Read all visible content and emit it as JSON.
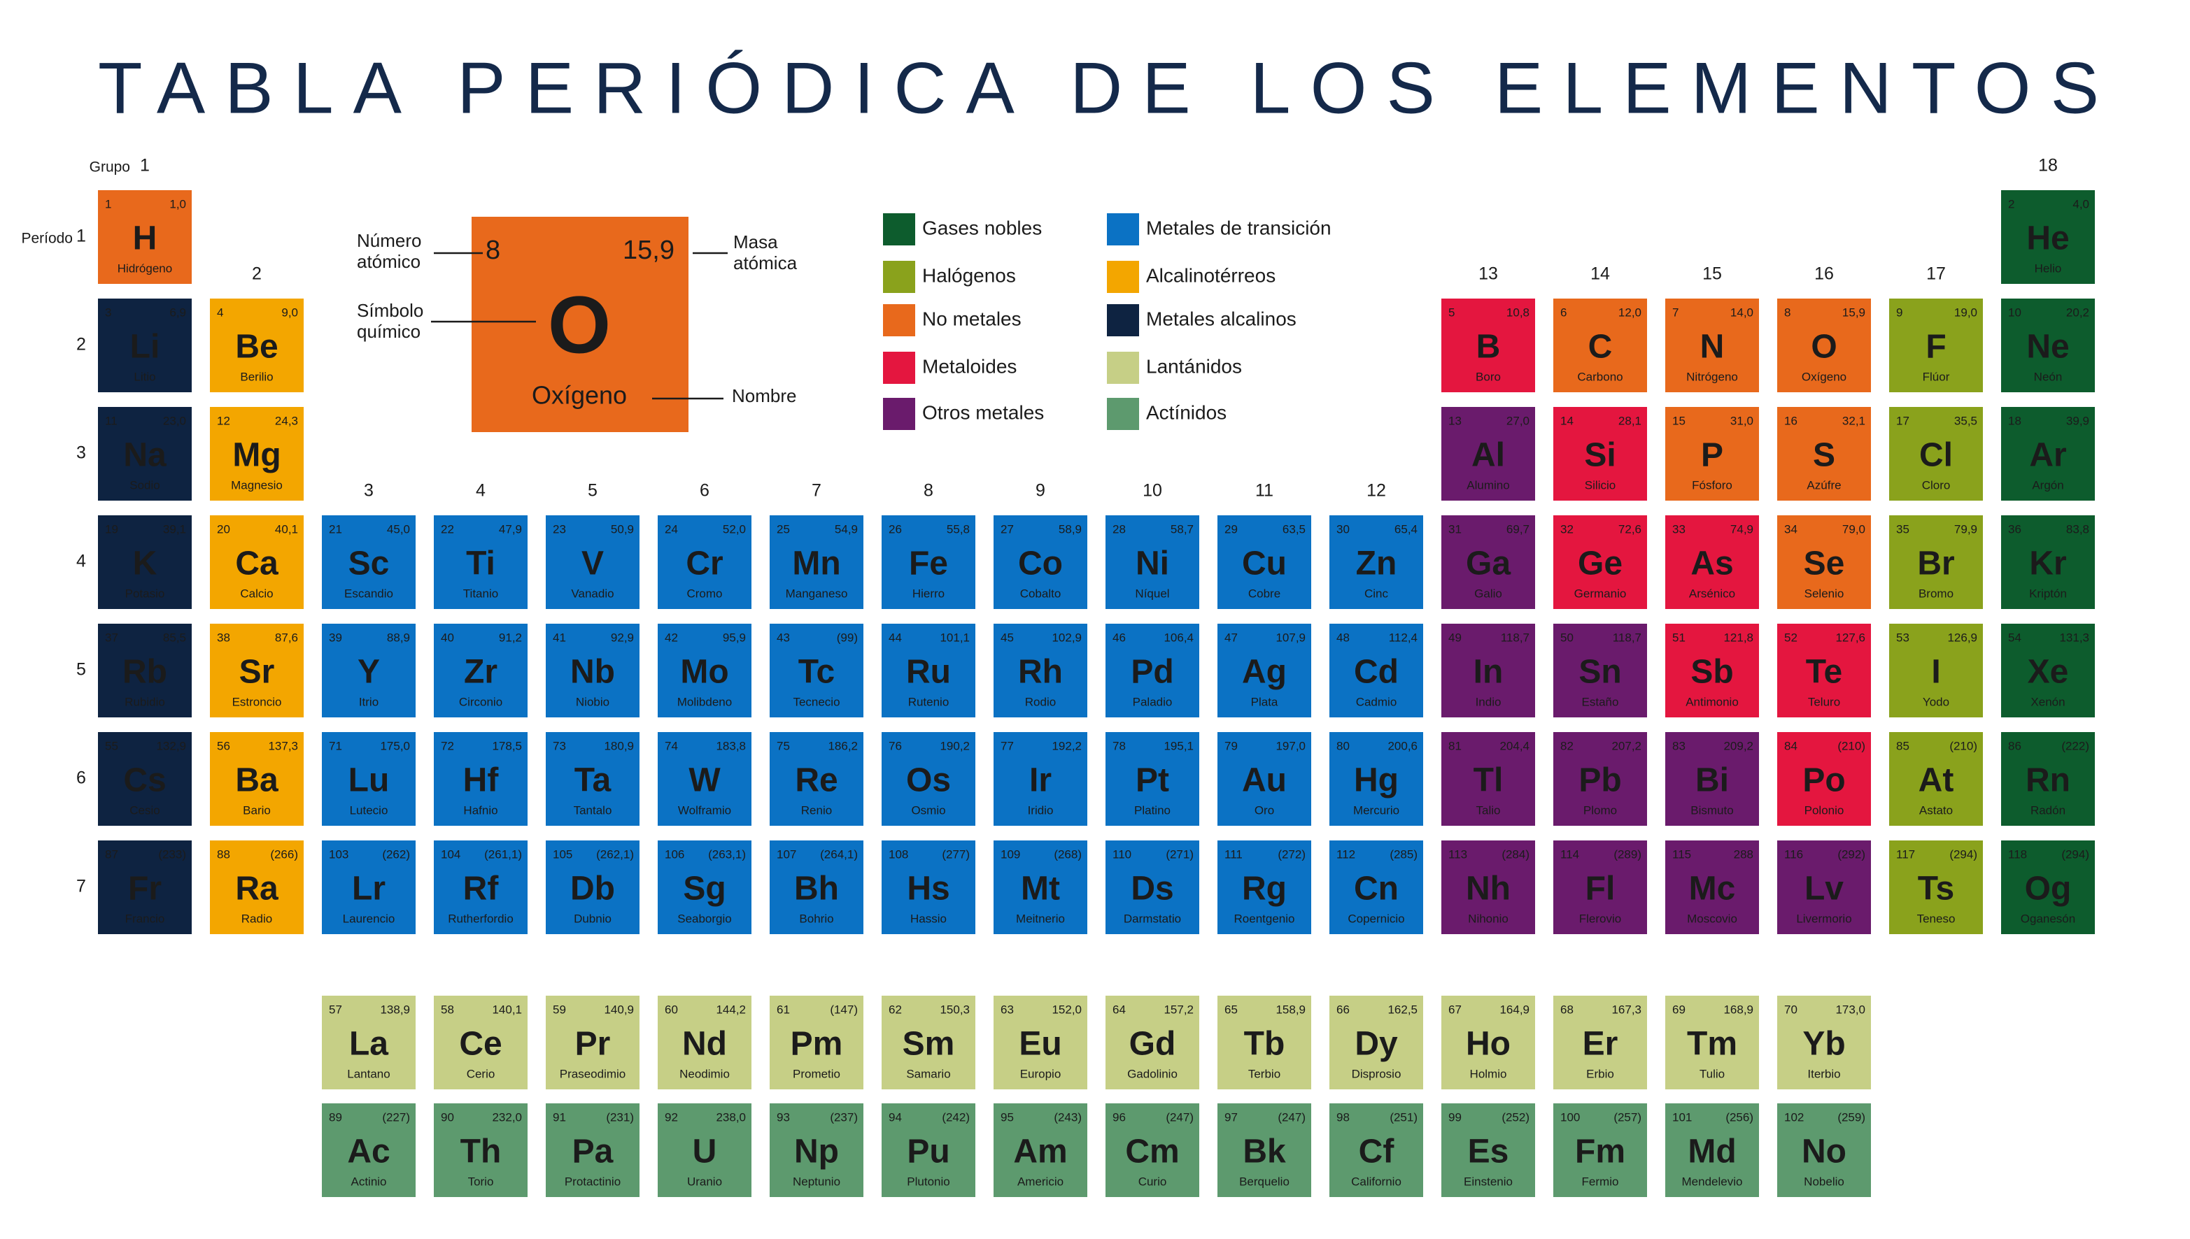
{
  "title": "TABLA PERIÓDICA DE LOS ELEMENTOS",
  "group_label": "Grupo",
  "period_label": "Período",
  "groups": [
    1,
    2,
    3,
    4,
    5,
    6,
    7,
    8,
    9,
    10,
    11,
    12,
    13,
    14,
    15,
    16,
    17,
    18
  ],
  "periods": [
    1,
    2,
    3,
    4,
    5,
    6,
    7
  ],
  "legend": [
    {
      "name": "Gases nobles",
      "color": "#0d5c2d",
      "text_color": "#ffffff"
    },
    {
      "name": "Halógenos",
      "color": "#8aa21c",
      "text_color": "#111111"
    },
    {
      "name": "No metales",
      "color": "#e8691c",
      "text_color": "#111111"
    },
    {
      "name": "Metaloides",
      "color": "#e4163f",
      "text_color": "#ffffff"
    },
    {
      "name": "Otros metales",
      "color": "#6a1b6c",
      "text_color": "#ffffff"
    },
    {
      "name": "Metales de transición",
      "color": "#0b72c4",
      "text_color": "#ffffff"
    },
    {
      "name": "Alcalinotérreos",
      "color": "#f3a600",
      "text_color": "#111111"
    },
    {
      "name": "Metales alcalinos",
      "color": "#0e2341",
      "text_color": "#ffffff"
    },
    {
      "name": "Lantánidos",
      "color": "#c6cf86",
      "text_color": "#111111"
    },
    {
      "name": "Actínidos",
      "color": "#5d9a6e",
      "text_color": "#111111"
    }
  ],
  "key_labels": {
    "atomic_number": [
      "Número",
      "atómico"
    ],
    "atomic_mass": [
      "Masa",
      "atómica"
    ],
    "symbol": [
      "Símbolo",
      "químico"
    ],
    "name": [
      "Nombre"
    ]
  },
  "elements": [
    {
      "number": 1,
      "mass": "1,0",
      "symbol": "H",
      "name": "Hidrógeno",
      "category": "No metales"
    },
    {
      "number": 2,
      "mass": "4,0",
      "symbol": "He",
      "name": "Helio",
      "category": "Gases nobles"
    },
    {
      "number": 3,
      "mass": "6,9",
      "symbol": "Li",
      "name": "Litio",
      "category": "Metales alcalinos"
    },
    {
      "number": 4,
      "mass": "9,0",
      "symbol": "Be",
      "name": "Berilio",
      "category": "Alcalinotérreos"
    },
    {
      "number": 5,
      "mass": "10,8",
      "symbol": "B",
      "name": "Boro",
      "category": "Metaloides"
    },
    {
      "number": 6,
      "mass": "12,0",
      "symbol": "C",
      "name": "Carbono",
      "category": "No metales"
    },
    {
      "number": 7,
      "mass": "14,0",
      "symbol": "N",
      "name": "Nitrógeno",
      "category": "No metales"
    },
    {
      "number": 8,
      "mass": "15,9",
      "symbol": "O",
      "name": "Oxígeno",
      "category": "No metales"
    },
    {
      "number": 9,
      "mass": "19,0",
      "symbol": "F",
      "name": "Flúor",
      "category": "Halógenos"
    },
    {
      "number": 10,
      "mass": "20,2",
      "symbol": "Ne",
      "name": "Neón",
      "category": "Gases nobles"
    },
    {
      "number": 11,
      "mass": "23,0",
      "symbol": "Na",
      "name": "Sodio",
      "category": "Metales alcalinos"
    },
    {
      "number": 12,
      "mass": "24,3",
      "symbol": "Mg",
      "name": "Magnesio",
      "category": "Alcalinotérreos"
    },
    {
      "number": 13,
      "mass": "27,0",
      "symbol": "Al",
      "name": "Alumino",
      "category": "Otros metales"
    },
    {
      "number": 14,
      "mass": "28,1",
      "symbol": "Si",
      "name": "Silicio",
      "category": "Metaloides"
    },
    {
      "number": 15,
      "mass": "31,0",
      "symbol": "P",
      "name": "Fósforo",
      "category": "No metales"
    },
    {
      "number": 16,
      "mass": "32,1",
      "symbol": "S",
      "name": "Azúfre",
      "category": "No metales"
    },
    {
      "number": 17,
      "mass": "35,5",
      "symbol": "Cl",
      "name": "Cloro",
      "category": "Halógenos"
    },
    {
      "number": 18,
      "mass": "39,9",
      "symbol": "Ar",
      "name": "Argón",
      "category": "Gases nobles"
    },
    {
      "number": 19,
      "mass": "39,1",
      "symbol": "K",
      "name": "Potasio",
      "category": "Metales alcalinos"
    },
    {
      "number": 20,
      "mass": "40,1",
      "symbol": "Ca",
      "name": "Calcio",
      "category": "Alcalinotérreos"
    },
    {
      "number": 21,
      "mass": "45,0",
      "symbol": "Sc",
      "name": "Escandio",
      "category": "Metales de transición"
    },
    {
      "number": 22,
      "mass": "47,9",
      "symbol": "Ti",
      "name": "Titanio",
      "category": "Metales de transición"
    },
    {
      "number": 23,
      "mass": "50,9",
      "symbol": "V",
      "name": "Vanadio",
      "category": "Metales de transición"
    },
    {
      "number": 24,
      "mass": "52,0",
      "symbol": "Cr",
      "name": "Cromo",
      "category": "Metales de transición"
    },
    {
      "number": 25,
      "mass": "54,9",
      "symbol": "Mn",
      "name": "Manganeso",
      "category": "Metales de transición"
    },
    {
      "number": 26,
      "mass": "55,8",
      "symbol": "Fe",
      "name": "Hierro",
      "category": "Metales de transición"
    },
    {
      "number": 27,
      "mass": "58,9",
      "symbol": "Co",
      "name": "Cobalto",
      "category": "Metales de transición"
    },
    {
      "number": 28,
      "mass": "58,7",
      "symbol": "Ni",
      "name": "Níquel",
      "category": "Metales de transición"
    },
    {
      "number": 29,
      "mass": "63,5",
      "symbol": "Cu",
      "name": "Cobre",
      "category": "Metales de transición"
    },
    {
      "number": 30,
      "mass": "65,4",
      "symbol": "Zn",
      "name": "Cinc",
      "category": "Metales de transición"
    },
    {
      "number": 31,
      "mass": "69,7",
      "symbol": "Ga",
      "name": "Galio",
      "category": "Otros metales"
    },
    {
      "number": 32,
      "mass": "72,6",
      "symbol": "Ge",
      "name": "Germanio",
      "category": "Metaloides"
    },
    {
      "number": 33,
      "mass": "74,9",
      "symbol": "As",
      "name": "Arsénico",
      "category": "Metaloides"
    },
    {
      "number": 34,
      "mass": "79,0",
      "symbol": "Se",
      "name": "Selenio",
      "category": "No metales"
    },
    {
      "number": 35,
      "mass": "79,9",
      "symbol": "Br",
      "name": "Bromo",
      "category": "Halógenos"
    },
    {
      "number": 36,
      "mass": "83,8",
      "symbol": "Kr",
      "name": "Kriptón",
      "category": "Gases nobles"
    },
    {
      "number": 37,
      "mass": "85,5",
      "symbol": "Rb",
      "name": "Rubidio",
      "category": "Metales alcalinos"
    },
    {
      "number": 38,
      "mass": "87,6",
      "symbol": "Sr",
      "name": "Estroncio",
      "category": "Alcalinotérreos"
    },
    {
      "number": 39,
      "mass": "88,9",
      "symbol": "Y",
      "name": "Itrio",
      "category": "Metales de transición"
    },
    {
      "number": 40,
      "mass": "91,2",
      "symbol": "Zr",
      "name": "Circonio",
      "category": "Metales de transición"
    },
    {
      "number": 41,
      "mass": "92,9",
      "symbol": "Nb",
      "name": "Niobio",
      "category": "Metales de transición"
    },
    {
      "number": 42,
      "mass": "95,9",
      "symbol": "Mo",
      "name": "Molibdeno",
      "category": "Metales de transición"
    },
    {
      "number": 43,
      "mass": "(99)",
      "symbol": "Tc",
      "name": "Tecnecio",
      "category": "Metales de transición"
    },
    {
      "number": 44,
      "mass": "101,1",
      "symbol": "Ru",
      "name": "Rutenio",
      "category": "Metales de transición"
    },
    {
      "number": 45,
      "mass": "102,9",
      "symbol": "Rh",
      "name": "Rodio",
      "category": "Metales de transición"
    },
    {
      "number": 46,
      "mass": "106,4",
      "symbol": "Pd",
      "name": "Paladio",
      "category": "Metales de transición"
    },
    {
      "number": 47,
      "mass": "107,9",
      "symbol": "Ag",
      "name": "Plata",
      "category": "Metales de transición"
    },
    {
      "number": 48,
      "mass": "112,4",
      "symbol": "Cd",
      "name": "Cadmio",
      "category": "Metales de transición"
    },
    {
      "number": 49,
      "mass": "118,7",
      "symbol": "In",
      "name": "Indio",
      "category": "Otros metales"
    },
    {
      "number": 50,
      "mass": "118,7",
      "symbol": "Sn",
      "name": "Estaño",
      "category": "Otros metales"
    },
    {
      "number": 51,
      "mass": "121,8",
      "symbol": "Sb",
      "name": "Antimonio",
      "category": "Metaloides"
    },
    {
      "number": 52,
      "mass": "127,6",
      "symbol": "Te",
      "name": "Teluro",
      "category": "Metaloides"
    },
    {
      "number": 53,
      "mass": "126,9",
      "symbol": "I",
      "name": "Yodo",
      "category": "Halógenos"
    },
    {
      "number": 54,
      "mass": "131,3",
      "symbol": "Xe",
      "name": "Xenón",
      "category": "Gases nobles"
    },
    {
      "number": 55,
      "mass": "132,9",
      "symbol": "Cs",
      "name": "Cesio",
      "category": "Metales alcalinos"
    },
    {
      "number": 56,
      "mass": "137,3",
      "symbol": "Ba",
      "name": "Bario",
      "category": "Alcalinotérreos"
    },
    {
      "number": 57,
      "mass": "138,9",
      "symbol": "La",
      "name": "Lantano",
      "category": "Lantánidos"
    },
    {
      "number": 58,
      "mass": "140,1",
      "symbol": "Ce",
      "name": "Cerio",
      "category": "Lantánidos"
    },
    {
      "number": 59,
      "mass": "140,9",
      "symbol": "Pr",
      "name": "Praseodimio",
      "category": "Lantánidos"
    },
    {
      "number": 60,
      "mass": "144,2",
      "symbol": "Nd",
      "name": "Neodimio",
      "category": "Lantánidos"
    },
    {
      "number": 61,
      "mass": "(147)",
      "symbol": "Pm",
      "name": "Prometio",
      "category": "Lantánidos"
    },
    {
      "number": 62,
      "mass": "150,3",
      "symbol": "Sm",
      "name": "Samario",
      "category": "Lantánidos"
    },
    {
      "number": 63,
      "mass": "152,0",
      "symbol": "Eu",
      "name": "Europio",
      "category": "Lantánidos"
    },
    {
      "number": 64,
      "mass": "157,2",
      "symbol": "Gd",
      "name": "Gadolinio",
      "category": "Lantánidos"
    },
    {
      "number": 65,
      "mass": "158,9",
      "symbol": "Tb",
      "name": "Terbio",
      "category": "Lantánidos"
    },
    {
      "number": 66,
      "mass": "162,5",
      "symbol": "Dy",
      "name": "Disprosio",
      "category": "Lantánidos"
    },
    {
      "number": 67,
      "mass": "164,9",
      "symbol": "Ho",
      "name": "Holmio",
      "category": "Lantánidos"
    },
    {
      "number": 68,
      "mass": "167,3",
      "symbol": "Er",
      "name": "Erbio",
      "category": "Lantánidos"
    },
    {
      "number": 69,
      "mass": "168,9",
      "symbol": "Tm",
      "name": "Tulio",
      "category": "Lantánidos"
    },
    {
      "number": 70,
      "mass": "173,0",
      "symbol": "Yb",
      "name": "Iterbio",
      "category": "Lantánidos"
    },
    {
      "number": 71,
      "mass": "175,0",
      "symbol": "Lu",
      "name": "Lutecio",
      "category": "Metales de transición"
    },
    {
      "number": 72,
      "mass": "178,5",
      "symbol": "Hf",
      "name": "Hafnio",
      "category": "Metales de transición"
    },
    {
      "number": 73,
      "mass": "180,9",
      "symbol": "Ta",
      "name": "Tantalo",
      "category": "Metales de transición"
    },
    {
      "number": 74,
      "mass": "183,8",
      "symbol": "W",
      "name": "Wolframio",
      "category": "Metales de transición"
    },
    {
      "number": 75,
      "mass": "186,2",
      "symbol": "Re",
      "name": "Renio",
      "category": "Metales de transición"
    },
    {
      "number": 76,
      "mass": "190,2",
      "symbol": "Os",
      "name": "Osmio",
      "category": "Metales de transición"
    },
    {
      "number": 77,
      "mass": "192,2",
      "symbol": "Ir",
      "name": "Iridio",
      "category": "Metales de transición"
    },
    {
      "number": 78,
      "mass": "195,1",
      "symbol": "Pt",
      "name": "Platino",
      "category": "Metales de transición"
    },
    {
      "number": 79,
      "mass": "197,0",
      "symbol": "Au",
      "name": "Oro",
      "category": "Metales de transición"
    },
    {
      "number": 80,
      "mass": "200,6",
      "symbol": "Hg",
      "name": "Mercurio",
      "category": "Metales de transición"
    },
    {
      "number": 81,
      "mass": "204,4",
      "symbol": "Tl",
      "name": "Talio",
      "category": "Otros metales"
    },
    {
      "number": 82,
      "mass": "207,2",
      "symbol": "Pb",
      "name": "Plomo",
      "category": "Otros metales"
    },
    {
      "number": 83,
      "mass": "209,2",
      "symbol": "Bi",
      "name": "Bismuto",
      "category": "Otros metales"
    },
    {
      "number": 84,
      "mass": "(210)",
      "symbol": "Po",
      "name": "Polonio",
      "category": "Metaloides"
    },
    {
      "number": 85,
      "mass": "(210)",
      "symbol": "At",
      "name": "Astato",
      "category": "Halógenos"
    },
    {
      "number": 86,
      "mass": "(222)",
      "symbol": "Rn",
      "name": "Radón",
      "category": "Gases nobles"
    },
    {
      "number": 87,
      "mass": "(233)",
      "symbol": "Fr",
      "name": "Francio",
      "category": "Metales alcalinos"
    },
    {
      "number": 88,
      "mass": "(266)",
      "symbol": "Ra",
      "name": "Radio",
      "category": "Alcalinotérreos"
    },
    {
      "number": 89,
      "mass": "(227)",
      "symbol": "Ac",
      "name": "Actinio",
      "category": "Actínidos"
    },
    {
      "number": 90,
      "mass": "232,0",
      "symbol": "Th",
      "name": "Torio",
      "category": "Actínidos"
    },
    {
      "number": 91,
      "mass": "(231)",
      "symbol": "Pa",
      "name": "Protactinio",
      "category": "Actínidos"
    },
    {
      "number": 92,
      "mass": "238,0",
      "symbol": "U",
      "name": "Uranio",
      "category": "Actínidos"
    },
    {
      "number": 93,
      "mass": "(237)",
      "symbol": "Np",
      "name": "Neptunio",
      "category": "Actínidos"
    },
    {
      "number": 94,
      "mass": "(242)",
      "symbol": "Pu",
      "name": "Plutonio",
      "category": "Actínidos"
    },
    {
      "number": 95,
      "mass": "(243)",
      "symbol": "Am",
      "name": "Americio",
      "category": "Actínidos"
    },
    {
      "number": 96,
      "mass": "(247)",
      "symbol": "Cm",
      "name": "Curio",
      "category": "Actínidos"
    },
    {
      "number": 97,
      "mass": "(247)",
      "symbol": "Bk",
      "name": "Berquelio",
      "category": "Actínidos"
    },
    {
      "number": 98,
      "mass": "(251)",
      "symbol": "Cf",
      "name": "Californio",
      "category": "Actínidos"
    },
    {
      "number": 99,
      "mass": "(252)",
      "symbol": "Es",
      "name": "Einstenio",
      "category": "Actínidos"
    },
    {
      "number": 100,
      "mass": "(257)",
      "symbol": "Fm",
      "name": "Fermio",
      "category": "Actínidos"
    },
    {
      "number": 101,
      "mass": "(256)",
      "symbol": "Md",
      "name": "Mendelevio",
      "category": "Actínidos"
    },
    {
      "number": 102,
      "mass": "(259)",
      "symbol": "No",
      "name": "Nobelio",
      "category": "Actínidos"
    },
    {
      "number": 103,
      "mass": "(262)",
      "symbol": "Lr",
      "name": "Laurencio",
      "category": "Metales de transición"
    },
    {
      "number": 104,
      "mass": "(261,1)",
      "symbol": "Rf",
      "name": "Rutherfordio",
      "category": "Metales de transición"
    },
    {
      "number": 105,
      "mass": "(262,1)",
      "symbol": "Db",
      "name": "Dubnio",
      "category": "Metales de transición"
    },
    {
      "number": 106,
      "mass": "(263,1)",
      "symbol": "Sg",
      "name": "Seaborgio",
      "category": "Metales de transición"
    },
    {
      "number": 107,
      "mass": "(264,1)",
      "symbol": "Bh",
      "name": "Bohrio",
      "category": "Metales de transición"
    },
    {
      "number": 108,
      "mass": "(277)",
      "symbol": "Hs",
      "name": "Hassio",
      "category": "Metales de transición"
    },
    {
      "number": 109,
      "mass": "(268)",
      "symbol": "Mt",
      "name": "Meitnerio",
      "category": "Metales de transición"
    },
    {
      "number": 110,
      "mass": "(271)",
      "symbol": "Ds",
      "name": "Darmstatio",
      "category": "Metales de transición"
    },
    {
      "number": 111,
      "mass": "(272)",
      "symbol": "Rg",
      "name": "Roentgenio",
      "category": "Metales de transición"
    },
    {
      "number": 112,
      "mass": "(285)",
      "symbol": "Cn",
      "name": "Copernicio",
      "category": "Metales de transición"
    },
    {
      "number": 113,
      "mass": "(284)",
      "symbol": "Nh",
      "name": "Nihonio",
      "category": "Otros metales"
    },
    {
      "number": 114,
      "mass": "(289)",
      "symbol": "Fl",
      "name": "Flerovio",
      "category": "Otros metales"
    },
    {
      "number": 115,
      "mass": "288",
      "symbol": "Mc",
      "name": "Moscovio",
      "category": "Otros metales"
    },
    {
      "number": 116,
      "mass": "(292)",
      "symbol": "Lv",
      "name": "Livermorio",
      "category": "Otros metales"
    },
    {
      "number": 117,
      "mass": "(294)",
      "symbol": "Ts",
      "name": "Teneso",
      "category": "Halógenos"
    },
    {
      "number": 118,
      "mass": "(294)",
      "symbol": "Og",
      "name": "Oganesón",
      "category": "Gases nobles"
    }
  ]
}
